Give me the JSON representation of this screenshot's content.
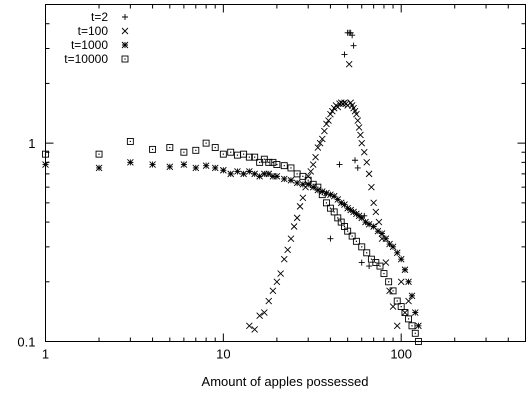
{
  "chart_data": {
    "type": "scatter",
    "title": "",
    "xlabel": "Amount of apples possessed",
    "ylabel": "",
    "xscale": "log",
    "yscale": "log",
    "xlim": [
      1,
      500
    ],
    "ylim": [
      0.1,
      5
    ],
    "grid": false,
    "legend_position": "top-left",
    "xticks": [
      {
        "value": 1,
        "label": "1"
      },
      {
        "value": 10,
        "label": "10"
      },
      {
        "value": 100,
        "label": "100"
      }
    ],
    "yticks": [
      {
        "value": 0.1,
        "label": "0.1"
      },
      {
        "value": 1,
        "label": "1"
      }
    ],
    "series": [
      {
        "name": "t=2",
        "marker": "plus",
        "x": [
          40,
          45,
          48,
          50,
          51,
          52,
          53,
          54,
          55,
          57,
          60,
          62,
          66
        ],
        "y": [
          0.33,
          0.78,
          2.8,
          3.6,
          3.6,
          3.6,
          3.5,
          3.1,
          0.82,
          0.75,
          0.25,
          0.43,
          0.24
        ]
      },
      {
        "name": "t=100",
        "marker": "x",
        "x": [
          14,
          15,
          16,
          17,
          18,
          19,
          20,
          21,
          22,
          23,
          24,
          25,
          26,
          27,
          28,
          29,
          30,
          31,
          32,
          33,
          34,
          35,
          36,
          37,
          38,
          39,
          40,
          41,
          42,
          43,
          44,
          45,
          46,
          47,
          48,
          49,
          50,
          51,
          52,
          53,
          54,
          55,
          56,
          57,
          58,
          59,
          60,
          62,
          64,
          66,
          68,
          70,
          72,
          75,
          78,
          82,
          86,
          90,
          95,
          100,
          105,
          110
        ],
        "y": [
          0.12,
          0.115,
          0.135,
          0.14,
          0.16,
          0.18,
          0.2,
          0.22,
          0.26,
          0.29,
          0.33,
          0.38,
          0.42,
          0.48,
          0.53,
          0.6,
          0.68,
          0.72,
          0.78,
          0.85,
          0.95,
          1.0,
          1.05,
          1.15,
          1.25,
          1.3,
          1.4,
          1.45,
          1.5,
          1.55,
          1.52,
          1.58,
          1.6,
          1.58,
          1.6,
          1.58,
          1.55,
          2.5,
          1.6,
          1.55,
          1.5,
          1.45,
          1.4,
          1.3,
          1.2,
          1.1,
          1.0,
          0.9,
          0.8,
          0.7,
          0.6,
          0.5,
          0.45,
          0.4,
          0.33,
          0.25,
          0.18,
          0.15,
          0.12,
          0.2,
          0.14,
          0.16
        ]
      },
      {
        "name": "t=1000",
        "marker": "asterisk",
        "x": [
          1,
          2,
          3,
          4,
          5,
          6,
          7,
          8,
          9,
          10,
          11,
          12,
          13,
          14,
          15,
          16,
          17,
          18,
          19,
          20,
          22,
          24,
          26,
          28,
          30,
          32,
          34,
          36,
          38,
          40,
          42,
          44,
          46,
          48,
          50,
          52,
          54,
          56,
          58,
          60,
          63,
          66,
          70,
          74,
          78,
          82,
          86,
          90,
          95,
          100,
          105,
          110,
          115,
          120,
          125
        ],
        "y": [
          0.78,
          0.75,
          0.8,
          0.78,
          0.76,
          0.78,
          0.75,
          0.77,
          0.75,
          0.73,
          0.7,
          0.72,
          0.7,
          0.72,
          0.7,
          0.68,
          0.7,
          0.7,
          0.68,
          0.68,
          0.66,
          0.65,
          0.63,
          0.62,
          0.62,
          0.6,
          0.58,
          0.57,
          0.56,
          0.55,
          0.54,
          0.52,
          0.5,
          0.49,
          0.47,
          0.46,
          0.45,
          0.44,
          0.43,
          0.42,
          0.4,
          0.39,
          0.38,
          0.36,
          0.35,
          0.33,
          0.31,
          0.3,
          0.28,
          0.26,
          0.23,
          0.2,
          0.17,
          0.14,
          0.12
        ]
      },
      {
        "name": "t=10000",
        "marker": "square",
        "x": [
          1,
          2,
          3,
          4,
          5,
          6,
          7,
          8,
          9,
          10,
          11,
          12,
          13,
          14,
          15,
          16,
          17,
          18,
          19,
          20,
          22,
          24,
          26,
          28,
          30,
          32,
          34,
          36,
          38,
          40,
          42,
          44,
          46,
          48,
          50,
          53,
          56,
          60,
          64,
          68,
          72,
          76,
          80,
          85,
          90,
          95,
          100,
          105,
          110,
          115,
          120,
          125
        ],
        "y": [
          0.88,
          0.88,
          1.02,
          0.93,
          0.95,
          0.9,
          0.92,
          1.0,
          0.95,
          0.88,
          0.9,
          0.87,
          0.88,
          0.85,
          0.85,
          0.8,
          0.83,
          0.8,
          0.8,
          0.78,
          0.77,
          0.75,
          0.7,
          0.68,
          0.65,
          0.62,
          0.6,
          0.55,
          0.5,
          0.47,
          0.45,
          0.42,
          0.4,
          0.38,
          0.36,
          0.34,
          0.32,
          0.3,
          0.28,
          0.26,
          0.25,
          0.24,
          0.22,
          0.2,
          0.18,
          0.16,
          0.15,
          0.14,
          0.13,
          0.12,
          0.11,
          0.1
        ]
      }
    ]
  }
}
